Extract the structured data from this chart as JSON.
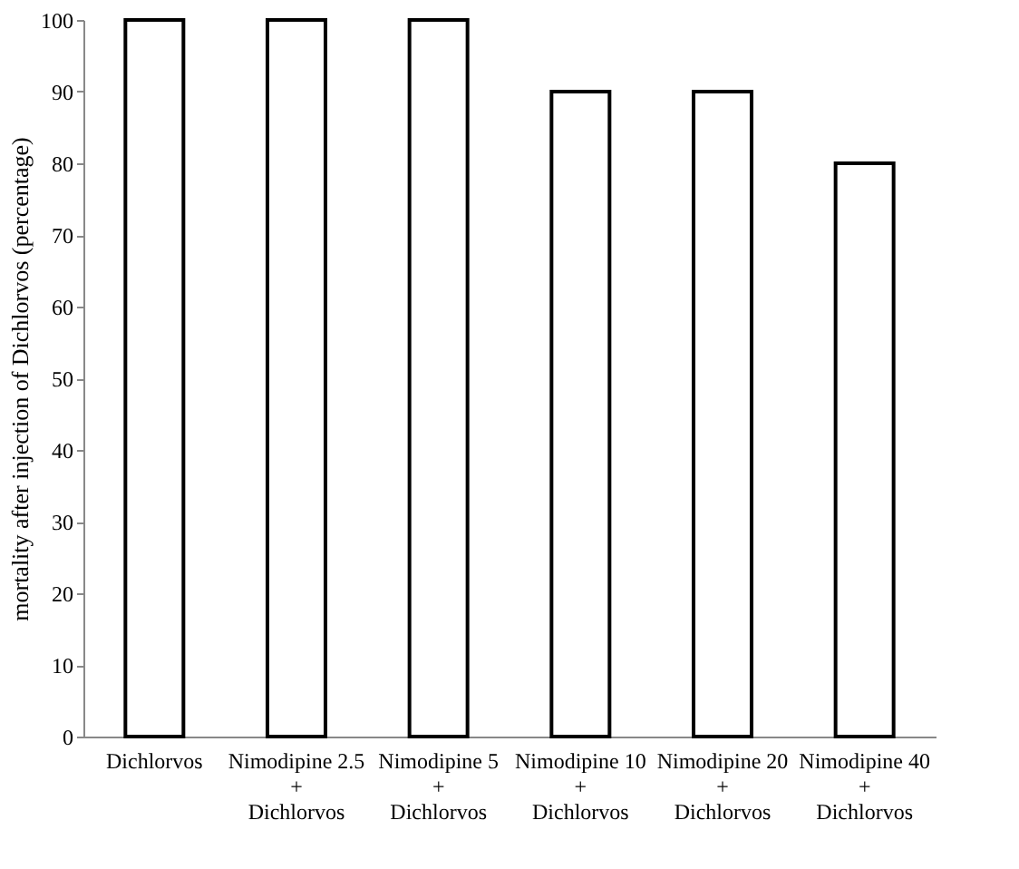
{
  "chart_data": {
    "type": "bar",
    "ylabel": "mortality after injection of Dichlorvos (percentage)",
    "categories": [
      "Dichlorvos",
      "Nimodipine 2.5\n+\nDichlorvos",
      "Nimodipine 5\n+\nDichlorvos",
      "Nimodipine 10\n+\nDichlorvos",
      "Nimodipine 20\n+\nDichlorvos",
      "Nimodipine 40\n+\nDichlorvos"
    ],
    "values": [
      100,
      100,
      100,
      90,
      90,
      80
    ],
    "color": "#ffffff",
    "ylim": [
      0,
      100
    ],
    "yticks": [
      0,
      10,
      20,
      30,
      40,
      50,
      60,
      70,
      80,
      90,
      100
    ],
    "grid": false
  }
}
